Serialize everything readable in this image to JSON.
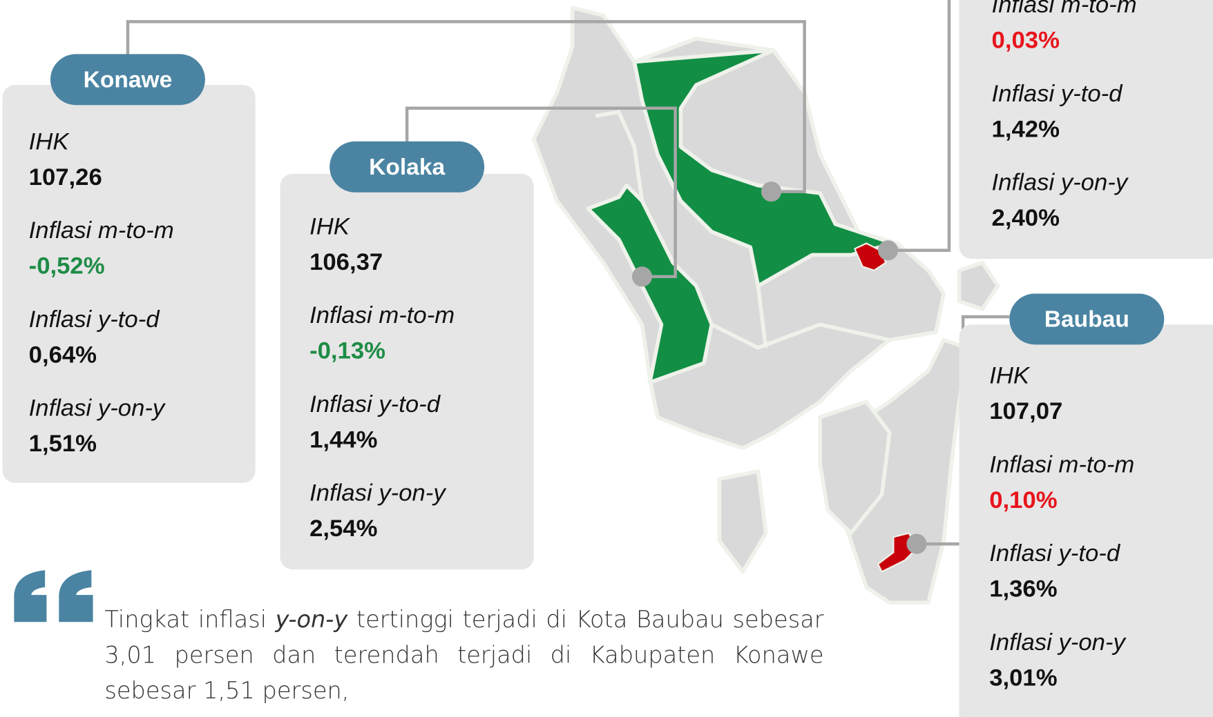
{
  "cards": [
    {
      "title": "Konawe",
      "items": [
        {
          "label": "IHK",
          "value": "107,26"
        },
        {
          "label": "Inflasi m-to-m",
          "value": "-0,52%",
          "color": "#1e8c46"
        },
        {
          "label": "Inflasi y-to-d",
          "value": "0,64%"
        },
        {
          "label": "Inflasi y-on-y",
          "value": "1,51%"
        }
      ]
    },
    {
      "title": "Kolaka",
      "items": [
        {
          "label": "IHK",
          "value": "106,37"
        },
        {
          "label": "Inflasi m-to-m",
          "value": "-0,13%",
          "color": "#1e8c46"
        },
        {
          "label": "Inflasi y-to-d",
          "value": "1,44%"
        },
        {
          "label": "Inflasi y-on-y",
          "value": "2,54%"
        }
      ]
    },
    {
      "items": [
        {
          "label": "Inflasi m-to-m",
          "value": "0,03%",
          "color": "#e8141c"
        },
        {
          "label": "Inflasi y-to-d",
          "value": "1,42%"
        },
        {
          "label": "Inflasi y-on-y",
          "value": "2,40%"
        }
      ]
    },
    {
      "title": "Baubau",
      "items": [
        {
          "label": "IHK",
          "value": "107,07"
        },
        {
          "label": "Inflasi m-to-m",
          "value": "0,10%",
          "color": "#e8141c"
        },
        {
          "label": "Inflasi y-to-d",
          "value": "1,36%"
        },
        {
          "label": "Inflasi y-on-y",
          "value": "3,01%"
        }
      ]
    }
  ],
  "quote": {
    "parts": [
      "Tingkat inflasi ",
      "y-on-y",
      " tertinggi terjadi di Kota Baubau sebesar 3,01 persen dan terendah terjadi di Kabupaten Konawe sebesar 1,51 persen,"
    ]
  }
}
